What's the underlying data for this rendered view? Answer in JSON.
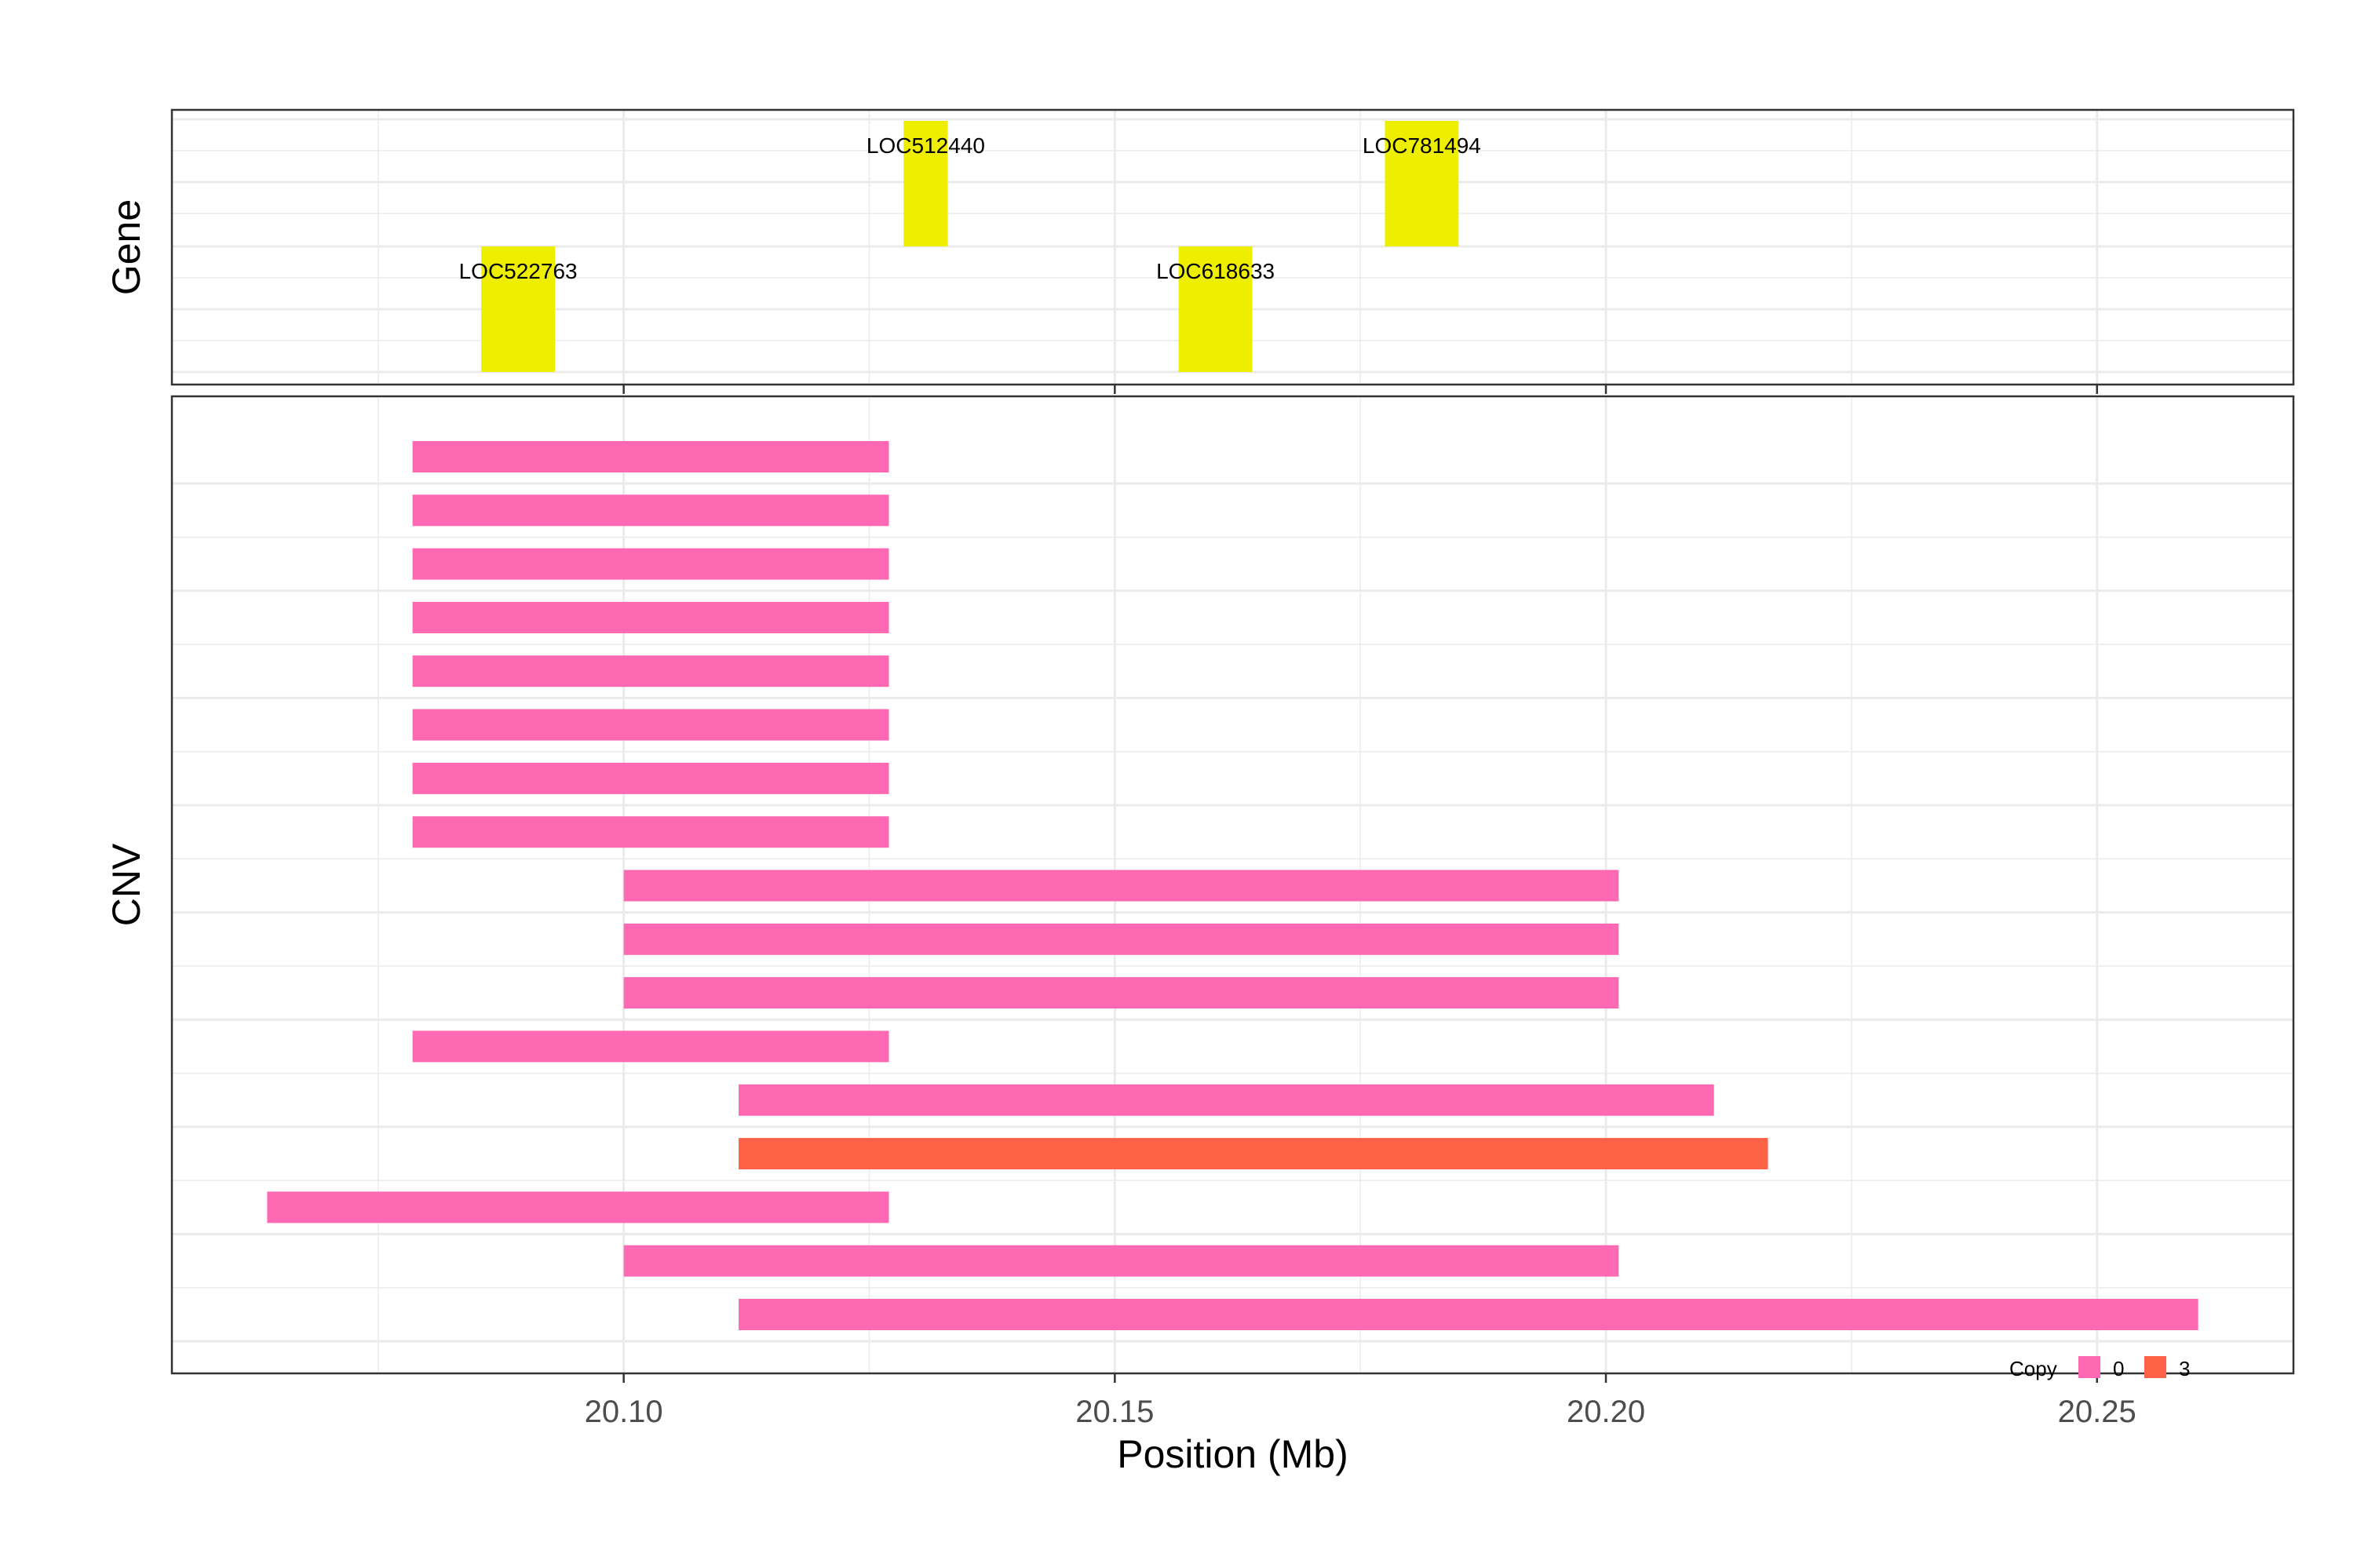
{
  "chart_data": {
    "type": "bar",
    "orientation": "horizontal-ranges",
    "xlabel": "Position (Mb)",
    "x_ticks": [
      20.1,
      20.15,
      20.2,
      20.25
    ],
    "x_tick_labels": [
      "20.10",
      "20.15",
      "20.20",
      "20.25"
    ],
    "xlim": [
      20.054,
      20.27
    ],
    "grid": true,
    "panels": {
      "gene": {
        "label": "Gene",
        "features": [
          {
            "name": "LOC522763",
            "start": 20.0855,
            "end": 20.093,
            "row": "lower"
          },
          {
            "name": "LOC512440",
            "start": 20.1285,
            "end": 20.133,
            "row": "upper"
          },
          {
            "name": "LOC618633",
            "start": 20.1565,
            "end": 20.164,
            "row": "lower"
          },
          {
            "name": "LOC781494",
            "start": 20.1775,
            "end": 20.185,
            "row": "upper"
          }
        ],
        "color": "#eeee00"
      },
      "cnv": {
        "label": "CNV",
        "segments": [
          {
            "start": 20.0785,
            "end": 20.127,
            "copy": "0"
          },
          {
            "start": 20.0785,
            "end": 20.127,
            "copy": "0"
          },
          {
            "start": 20.0785,
            "end": 20.127,
            "copy": "0"
          },
          {
            "start": 20.0785,
            "end": 20.127,
            "copy": "0"
          },
          {
            "start": 20.0785,
            "end": 20.127,
            "copy": "0"
          },
          {
            "start": 20.0785,
            "end": 20.127,
            "copy": "0"
          },
          {
            "start": 20.0785,
            "end": 20.127,
            "copy": "0"
          },
          {
            "start": 20.0785,
            "end": 20.127,
            "copy": "0"
          },
          {
            "start": 20.1,
            "end": 20.2013,
            "copy": "0"
          },
          {
            "start": 20.1,
            "end": 20.2013,
            "copy": "0"
          },
          {
            "start": 20.1,
            "end": 20.2013,
            "copy": "0"
          },
          {
            "start": 20.0785,
            "end": 20.127,
            "copy": "0"
          },
          {
            "start": 20.1117,
            "end": 20.211,
            "copy": "0"
          },
          {
            "start": 20.1117,
            "end": 20.2165,
            "copy": "3"
          },
          {
            "start": 20.0637,
            "end": 20.127,
            "copy": "0"
          },
          {
            "start": 20.1,
            "end": 20.2013,
            "copy": "0"
          },
          {
            "start": 20.1117,
            "end": 20.2603,
            "copy": "0"
          }
        ]
      }
    },
    "legend": {
      "title": "Copy",
      "placement": "bottom-right",
      "items": [
        {
          "label": "0",
          "color": "#ff69b4"
        },
        {
          "label": "3",
          "color": "#ff6347"
        }
      ]
    }
  }
}
